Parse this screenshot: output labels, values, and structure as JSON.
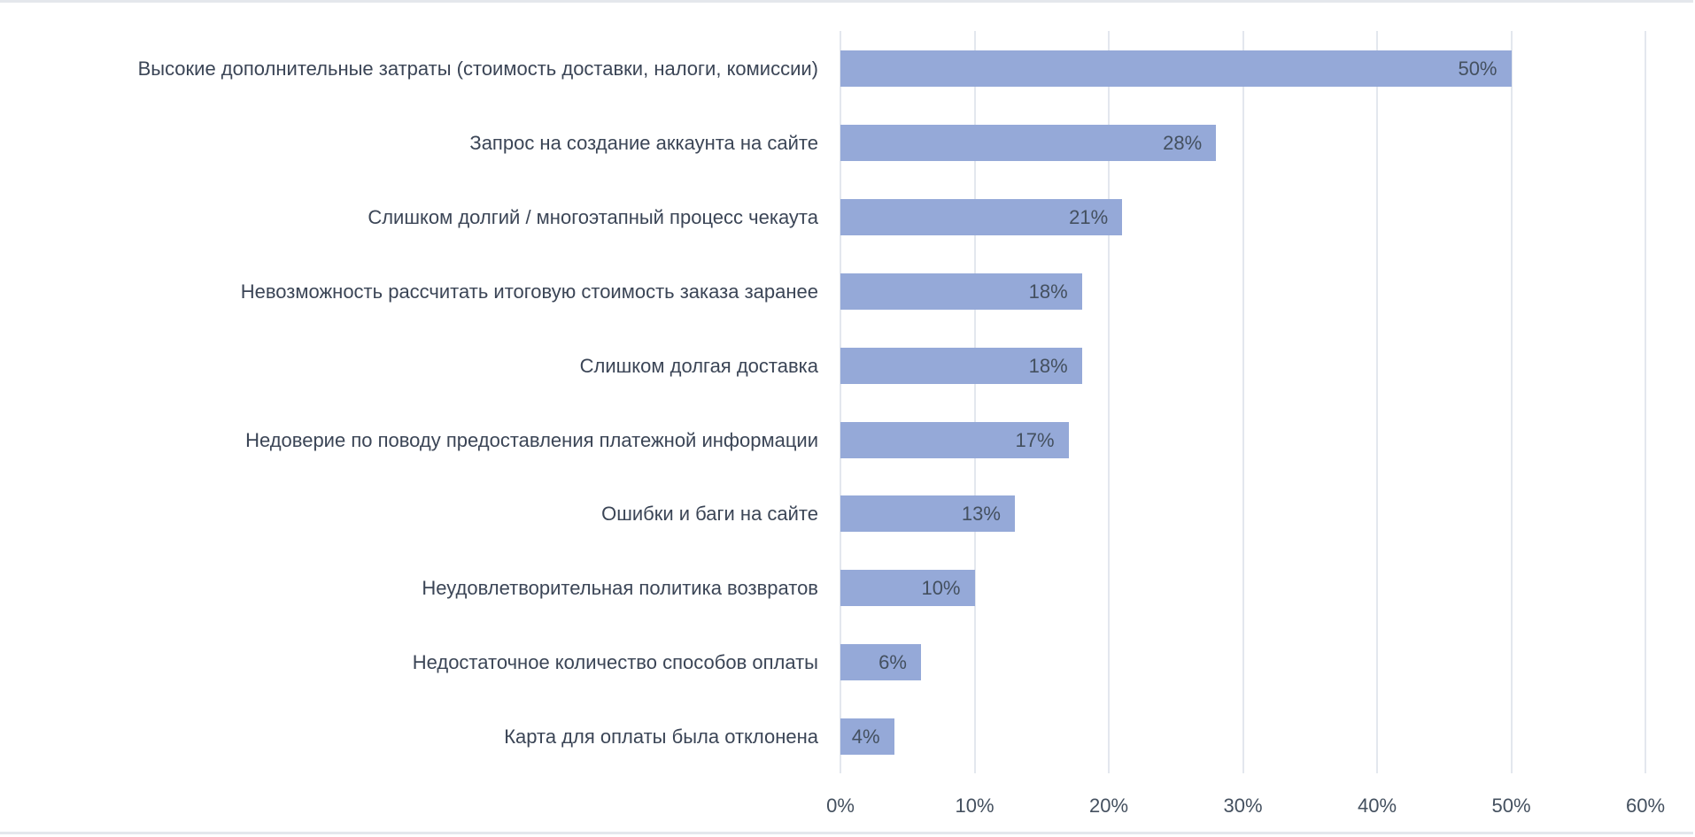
{
  "chart_data": {
    "type": "bar",
    "orientation": "horizontal",
    "title": "",
    "xlabel": "",
    "ylabel": "",
    "xlim": [
      0,
      60
    ],
    "grid": true,
    "categories": [
      "Высокие дополнительные затраты (стоимость доставки, налоги, комиссии)",
      "Запрос на создание аккаунта на сайте",
      "Слишком долгий / многоэтапный процесс чекаута",
      "Невозможность рассчитать итоговую стоимость заказа заранее",
      "Слишком долгая доставка",
      "Недоверие по поводу предоставления платежной информации",
      "Ошибки и баги на сайте",
      "Неудовлетворительная политика возвратов",
      "Недостаточное количество способов оплаты",
      "Карта для оплаты была отклонена"
    ],
    "values": [
      50,
      28,
      21,
      18,
      18,
      17,
      13,
      10,
      6,
      4
    ],
    "value_labels": [
      "50%",
      "28%",
      "21%",
      "18%",
      "18%",
      "17%",
      "13%",
      "10%",
      "6%",
      "4%"
    ],
    "xticks": [
      0,
      10,
      20,
      30,
      40,
      50,
      60
    ],
    "xtick_labels": [
      "0%",
      "10%",
      "20%",
      "30%",
      "40%",
      "50%",
      "60%"
    ],
    "bar_color": "#95a9d8"
  }
}
